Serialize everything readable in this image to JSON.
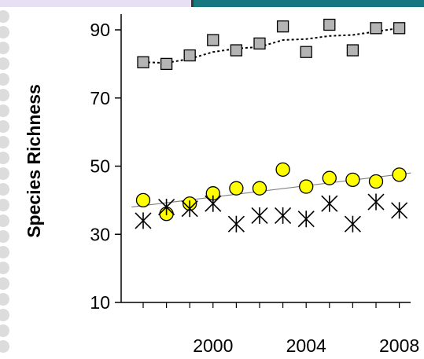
{
  "chart_data": {
    "type": "scatter",
    "title": "",
    "xlabel": "",
    "ylabel": "Species Richness",
    "xlim": [
      1996.5,
      2008.5
    ],
    "ylim": [
      10,
      95
    ],
    "yticks": [
      10,
      30,
      50,
      70,
      90
    ],
    "xticks": [
      2000,
      2004,
      2008
    ],
    "grid": false,
    "series": [
      {
        "marker": "square",
        "color": "#b4b4b4",
        "x": [
          1997,
          1998,
          1999,
          2000,
          2001,
          2002,
          2003,
          2004,
          2005,
          2006,
          2007,
          2008
        ],
        "y": [
          80.5,
          80,
          82.5,
          87,
          84,
          86,
          91,
          83.5,
          91.5,
          84,
          90.5,
          90.5
        ],
        "trend": "moving-average",
        "trend_style": "dotted",
        "trend_y": [
          80.5,
          80.3,
          81.5,
          83.5,
          84.5,
          85,
          87,
          87.3,
          88.2,
          88.5,
          89.5,
          90.5
        ]
      },
      {
        "marker": "circle",
        "color": "#ffff00",
        "x": [
          1997,
          1998,
          1999,
          2000,
          2001,
          2002,
          2003,
          2004,
          2005,
          2006,
          2007,
          2008
        ],
        "y": [
          40,
          36,
          39,
          42,
          43.5,
          43.5,
          49,
          44,
          46.5,
          46,
          45.5,
          47.5
        ],
        "trend": "linear",
        "trend_style": "solid",
        "trend_endpoints": [
          [
            1996.5,
            38
          ],
          [
            2008.5,
            48
          ]
        ]
      },
      {
        "marker": "asterisk",
        "color": "#000000",
        "x": [
          1997,
          1998,
          1999,
          2000,
          2001,
          2002,
          2003,
          2004,
          2005,
          2006,
          2007,
          2008
        ],
        "y": [
          34,
          38,
          37.5,
          39,
          33,
          35.5,
          35.5,
          34.5,
          39,
          33,
          39.5,
          37
        ]
      }
    ]
  }
}
